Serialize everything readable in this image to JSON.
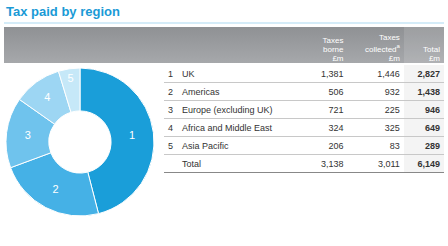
{
  "title": "Tax paid by region",
  "chart_data": {
    "type": "pie",
    "hole": true,
    "categories": [
      "1",
      "2",
      "3",
      "4",
      "5"
    ],
    "values": [
      2827,
      1438,
      946,
      649,
      289
    ],
    "colors": [
      "#1a9ed9",
      "#45b1e6",
      "#6fc3ed",
      "#9dd6f3",
      "#c6e8f8"
    ]
  },
  "table": {
    "header": [
      {
        "lines": []
      },
      {
        "lines": []
      },
      {
        "lines": [
          "Taxes",
          "borne",
          "£m"
        ]
      },
      {
        "lines": [
          "Taxes",
          "collected",
          "£m"
        ],
        "note_mark": "a"
      },
      {
        "lines": [
          "Total",
          "£m"
        ]
      }
    ],
    "rows": [
      [
        "1",
        "UK",
        "1,381",
        "1,446",
        "2,827"
      ],
      [
        "2",
        "Americas",
        "506",
        "932",
        "1,438"
      ],
      [
        "3",
        "Europe (excluding UK)",
        "721",
        "225",
        "946"
      ],
      [
        "4",
        "Africa and Middle East",
        "324",
        "325",
        "649"
      ],
      [
        "5",
        "Asia Pacific",
        "206",
        "83",
        "289"
      ],
      [
        "",
        "Total",
        "3,138",
        "3,011",
        "6,149"
      ]
    ]
  }
}
